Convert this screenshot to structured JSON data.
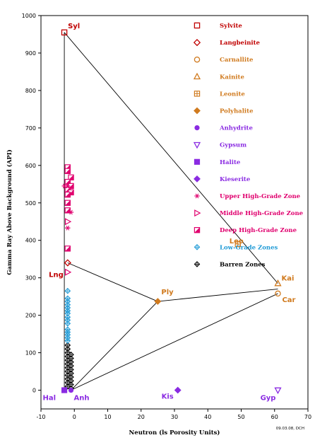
{
  "chart_data": {
    "type": "scatter",
    "xlabel": "Neutron (ls Porosity Units)",
    "ylabel": "Gamma Ray Above Background (API)",
    "xlim": [
      -10,
      70
    ],
    "ylim": [
      -50,
      1000
    ],
    "xticks": [
      -10,
      0,
      10,
      20,
      30,
      40,
      50,
      60,
      70
    ],
    "yticks": [
      0,
      100,
      200,
      300,
      400,
      500,
      600,
      700,
      800,
      900,
      1000
    ],
    "grid": false,
    "legend_position": "top-right",
    "footnote": "09.03.08, DCH",
    "colors": {
      "sylvite": "#c00000",
      "orange": "#d07a1e",
      "purple": "#8a2be2",
      "magenta": "#e0006e",
      "cyan": "#1e9ad6",
      "black": "#000000"
    },
    "series": [
      {
        "name": "Sylvite",
        "marker": "square-open",
        "color": "#c00000",
        "points": [
          [
            -3,
            955
          ]
        ]
      },
      {
        "name": "Langbeinite",
        "marker": "diamond-open",
        "color": "#c00000",
        "points": [
          [
            -2,
            340
          ]
        ]
      },
      {
        "name": "Carnallite",
        "marker": "circle-open",
        "color": "#d07a1e",
        "points": [
          [
            61,
            258
          ]
        ]
      },
      {
        "name": "Kainite",
        "marker": "triangle-open",
        "color": "#d07a1e",
        "points": [
          [
            61,
            285
          ]
        ]
      },
      {
        "name": "Leonite",
        "marker": "square-cross",
        "color": "#d07a1e",
        "points": [
          [
            49,
            390
          ]
        ]
      },
      {
        "name": "Polyhalite",
        "marker": "diamond-filled",
        "color": "#d07a1e",
        "points": [
          [
            25,
            237
          ]
        ]
      },
      {
        "name": "Anhydrite",
        "marker": "circle-filled",
        "color": "#8a2be2",
        "points": [
          [
            -1,
            0
          ]
        ]
      },
      {
        "name": "Gypsum",
        "marker": "triangle-down-open",
        "color": "#8a2be2",
        "points": [
          [
            61,
            0
          ]
        ]
      },
      {
        "name": "Halite",
        "marker": "square-filled",
        "color": "#8a2be2",
        "points": [
          [
            -3,
            0
          ]
        ]
      },
      {
        "name": "Kieserite",
        "marker": "diamond-filled",
        "color": "#8a2be2",
        "points": [
          [
            31,
            0
          ]
        ]
      },
      {
        "name": "Upper High-Grade Zone",
        "marker": "asterisk",
        "color": "#e0006e",
        "points": [
          [
            -2,
            545
          ],
          [
            -3,
            545
          ],
          [
            -1,
            475
          ],
          [
            -2,
            433
          ]
        ]
      },
      {
        "name": "Middle High-Grade Zone",
        "marker": "triangle-right-open",
        "color": "#e0006e",
        "points": [
          [
            -2,
            315
          ],
          [
            -2,
            450
          ]
        ]
      },
      {
        "name": "Deep High-Grade Zone",
        "marker": "square-half",
        "color": "#e0006e",
        "points": [
          [
            -2,
            595
          ],
          [
            -2,
            585
          ],
          [
            -1,
            568
          ],
          [
            -2,
            556
          ],
          [
            -1,
            545
          ],
          [
            -2,
            535
          ],
          [
            -1,
            528
          ],
          [
            -2,
            522
          ],
          [
            -2,
            500
          ],
          [
            -2,
            480
          ],
          [
            -2,
            378
          ]
        ]
      },
      {
        "name": "Low-Grade Zones",
        "marker": "diamond-cross",
        "color": "#1e9ad6",
        "points": [
          [
            -2,
            265
          ],
          [
            -2,
            245
          ],
          [
            -2,
            237
          ],
          [
            -2,
            228
          ],
          [
            -2,
            220
          ],
          [
            -2,
            212
          ],
          [
            -2,
            205
          ],
          [
            -2,
            195
          ],
          [
            -2,
            187
          ],
          [
            -2,
            178
          ],
          [
            -2,
            162
          ],
          [
            -2,
            155
          ],
          [
            -2,
            148
          ],
          [
            -2,
            140
          ],
          [
            -2,
            132
          ]
        ]
      },
      {
        "name": "Barren Zones",
        "marker": "diamond-cross",
        "color": "#000000",
        "points": [
          [
            -2,
            120
          ],
          [
            -2,
            110
          ],
          [
            -2,
            100
          ],
          [
            -1,
            95
          ],
          [
            -2,
            90
          ],
          [
            -1,
            85
          ],
          [
            -2,
            80
          ],
          [
            -1,
            75
          ],
          [
            -2,
            70
          ],
          [
            -1,
            65
          ],
          [
            -2,
            60
          ],
          [
            -1,
            55
          ],
          [
            -2,
            50
          ],
          [
            -1,
            45
          ],
          [
            -2,
            40
          ],
          [
            -1,
            35
          ],
          [
            -2,
            30
          ],
          [
            -1,
            25
          ],
          [
            -2,
            20
          ],
          [
            -1,
            15
          ],
          [
            -2,
            10
          ],
          [
            -1,
            5
          ]
        ]
      }
    ],
    "lines": [
      {
        "from": [
          -3,
          955
        ],
        "to": [
          61,
          285
        ]
      },
      {
        "from": [
          -3,
          955
        ],
        "to": [
          -3,
          0
        ]
      },
      {
        "from": [
          -2,
          340
        ],
        "to": [
          25,
          237
        ]
      },
      {
        "from": [
          25,
          237
        ],
        "to": [
          61,
          270
        ]
      },
      {
        "from": [
          -1,
          0
        ],
        "to": [
          25,
          237
        ]
      },
      {
        "from": [
          -1,
          0
        ],
        "to": [
          61,
          258
        ]
      }
    ],
    "point_labels": [
      {
        "text": "Syl",
        "x": -3,
        "y": 955,
        "color": "#c00000",
        "anchor": "ne"
      },
      {
        "text": "Lng",
        "x": -2,
        "y": 340,
        "color": "#c00000",
        "anchor": "nw"
      },
      {
        "text": "Leo",
        "x": 49,
        "y": 390,
        "color": "#d07a1e",
        "anchor": "nw"
      },
      {
        "text": "Ply",
        "x": 25,
        "y": 237,
        "color": "#d07a1e",
        "anchor": "ne"
      },
      {
        "text": "Kai",
        "x": 61,
        "y": 285,
        "color": "#d07a1e",
        "anchor": "ne"
      },
      {
        "text": "Car",
        "x": 61,
        "y": 258,
        "color": "#d07a1e",
        "anchor": "se"
      },
      {
        "text": "Hal",
        "x": -3,
        "y": 0,
        "color": "#8a2be2",
        "anchor": "sw"
      },
      {
        "text": "Anh",
        "x": -1,
        "y": 0,
        "color": "#8a2be2",
        "anchor": "se"
      },
      {
        "text": "Kis",
        "x": 31,
        "y": 0,
        "color": "#8a2be2",
        "anchor": "sw"
      },
      {
        "text": "Gyp",
        "x": 61,
        "y": 0,
        "color": "#8a2be2",
        "anchor": "sw"
      }
    ],
    "legend": [
      {
        "label": "Sylvite",
        "color": "#c00000",
        "text_color": "#c00000",
        "marker": "square-open"
      },
      {
        "label": "Langbeinite",
        "color": "#c00000",
        "text_color": "#c00000",
        "marker": "diamond-open"
      },
      {
        "label": "Carnallite",
        "color": "#d07a1e",
        "text_color": "#d07a1e",
        "marker": "circle-open"
      },
      {
        "label": "Kainite",
        "color": "#d07a1e",
        "text_color": "#d07a1e",
        "marker": "triangle-open"
      },
      {
        "label": "Leonite",
        "color": "#d07a1e",
        "text_color": "#d07a1e",
        "marker": "square-cross"
      },
      {
        "label": "Polyhalite",
        "color": "#d07a1e",
        "text_color": "#d07a1e",
        "marker": "diamond-filled"
      },
      {
        "label": "Anhydrite",
        "color": "#8a2be2",
        "text_color": "#8a2be2",
        "marker": "circle-filled"
      },
      {
        "label": "Gypsum",
        "color": "#8a2be2",
        "text_color": "#8a2be2",
        "marker": "triangle-down-open"
      },
      {
        "label": "Halite",
        "color": "#8a2be2",
        "text_color": "#8a2be2",
        "marker": "square-filled"
      },
      {
        "label": "Kieserite",
        "color": "#8a2be2",
        "text_color": "#8a2be2",
        "marker": "diamond-filled"
      },
      {
        "label": "Upper High-Grade Zone",
        "color": "#e0006e",
        "text_color": "#e0006e",
        "marker": "asterisk"
      },
      {
        "label": "Middle High-Grade Zone",
        "color": "#e0006e",
        "text_color": "#e0006e",
        "marker": "triangle-right-open"
      },
      {
        "label": "Deep High-Grade Zone",
        "color": "#e0006e",
        "text_color": "#e0006e",
        "marker": "square-half"
      },
      {
        "label": "Low-Grade Zones",
        "color": "#1e9ad6",
        "text_color": "#1e9ad6",
        "marker": "diamond-cross"
      },
      {
        "label": "Barren Zones",
        "color": "#000000",
        "text_color": "#000000",
        "marker": "diamond-cross"
      }
    ]
  }
}
